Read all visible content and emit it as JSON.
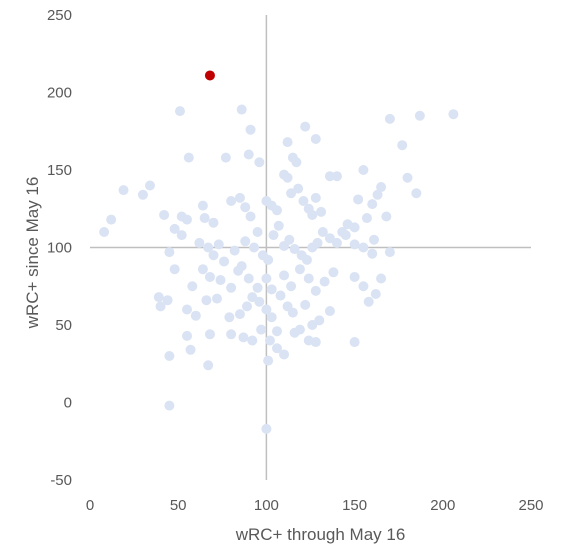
{
  "chart_data": {
    "type": "scatter",
    "title": "",
    "xlabel": "wRC+ through May 16",
    "ylabel": "wRC+ since May 16",
    "xlim": [
      0,
      250
    ],
    "ylim": [
      -50,
      250
    ],
    "x_ticks": [
      "0",
      "50",
      "100",
      "150",
      "200",
      "250"
    ],
    "y_ticks": [
      "250",
      "200",
      "150",
      "100",
      "50",
      "0",
      "-50"
    ],
    "reference_lines": {
      "x": 100,
      "y": 100
    },
    "grid": false,
    "legend": "none",
    "colors": {
      "points": "#dae3f3",
      "highlight": "#c00000",
      "axis": "#bfbfbf"
    },
    "highlight": {
      "x": 68,
      "y": 211
    },
    "points": [
      [
        51,
        188
      ],
      [
        86,
        189
      ],
      [
        91,
        176
      ],
      [
        56,
        158
      ],
      [
        77,
        158
      ],
      [
        90,
        160
      ],
      [
        96,
        155
      ],
      [
        115,
        158
      ],
      [
        117,
        155
      ],
      [
        122,
        178
      ],
      [
        128,
        170
      ],
      [
        112,
        168
      ],
      [
        170,
        183
      ],
      [
        187,
        185
      ],
      [
        206,
        186
      ],
      [
        177,
        166
      ],
      [
        19,
        137
      ],
      [
        30,
        134
      ],
      [
        34,
        140
      ],
      [
        8,
        110
      ],
      [
        12,
        118
      ],
      [
        42,
        121
      ],
      [
        52,
        120
      ],
      [
        55,
        118
      ],
      [
        64,
        127
      ],
      [
        65,
        119
      ],
      [
        70,
        116
      ],
      [
        80,
        130
      ],
      [
        85,
        132
      ],
      [
        88,
        126
      ],
      [
        91,
        120
      ],
      [
        95,
        110
      ],
      [
        100,
        130
      ],
      [
        103,
        127
      ],
      [
        106,
        124
      ],
      [
        110,
        147
      ],
      [
        112,
        145
      ],
      [
        114,
        135
      ],
      [
        118,
        138
      ],
      [
        121,
        130
      ],
      [
        124,
        125
      ],
      [
        126,
        121
      ],
      [
        128,
        132
      ],
      [
        131,
        123
      ],
      [
        136,
        146
      ],
      [
        140,
        146
      ],
      [
        143,
        110
      ],
      [
        146,
        115
      ],
      [
        150,
        113
      ],
      [
        152,
        131
      ],
      [
        155,
        150
      ],
      [
        157,
        119
      ],
      [
        160,
        128
      ],
      [
        163,
        134
      ],
      [
        165,
        139
      ],
      [
        168,
        120
      ],
      [
        180,
        145
      ],
      [
        185,
        135
      ],
      [
        161,
        105
      ],
      [
        48,
        112
      ],
      [
        52,
        108
      ],
      [
        45,
        97
      ],
      [
        62,
        103
      ],
      [
        67,
        100
      ],
      [
        70,
        95
      ],
      [
        73,
        102
      ],
      [
        76,
        91
      ],
      [
        82,
        98
      ],
      [
        86,
        88
      ],
      [
        88,
        104
      ],
      [
        93,
        100
      ],
      [
        98,
        95
      ],
      [
        101,
        92
      ],
      [
        104,
        108
      ],
      [
        107,
        114
      ],
      [
        110,
        101
      ],
      [
        113,
        105
      ],
      [
        116,
        99
      ],
      [
        120,
        95
      ],
      [
        123,
        92
      ],
      [
        126,
        100
      ],
      [
        129,
        103
      ],
      [
        132,
        110
      ],
      [
        136,
        106
      ],
      [
        140,
        103
      ],
      [
        145,
        108
      ],
      [
        150,
        102
      ],
      [
        155,
        100
      ],
      [
        160,
        96
      ],
      [
        170,
        97
      ],
      [
        48,
        86
      ],
      [
        58,
        75
      ],
      [
        64,
        86
      ],
      [
        68,
        81
      ],
      [
        74,
        79
      ],
      [
        80,
        74
      ],
      [
        84,
        85
      ],
      [
        90,
        80
      ],
      [
        95,
        74
      ],
      [
        100,
        80
      ],
      [
        103,
        73
      ],
      [
        108,
        69
      ],
      [
        110,
        82
      ],
      [
        114,
        75
      ],
      [
        119,
        86
      ],
      [
        124,
        80
      ],
      [
        128,
        72
      ],
      [
        133,
        78
      ],
      [
        138,
        84
      ],
      [
        150,
        81
      ],
      [
        155,
        75
      ],
      [
        158,
        65
      ],
      [
        162,
        70
      ],
      [
        165,
        80
      ],
      [
        39,
        68
      ],
      [
        40,
        62
      ],
      [
        44,
        66
      ],
      [
        55,
        60
      ],
      [
        60,
        56
      ],
      [
        66,
        66
      ],
      [
        72,
        67
      ],
      [
        79,
        55
      ],
      [
        85,
        57
      ],
      [
        89,
        62
      ],
      [
        92,
        68
      ],
      [
        96,
        65
      ],
      [
        100,
        60
      ],
      [
        103,
        55
      ],
      [
        106,
        46
      ],
      [
        112,
        62
      ],
      [
        115,
        58
      ],
      [
        119,
        47
      ],
      [
        122,
        63
      ],
      [
        126,
        50
      ],
      [
        130,
        53
      ],
      [
        136,
        59
      ],
      [
        150,
        39
      ],
      [
        55,
        43
      ],
      [
        57,
        34
      ],
      [
        68,
        44
      ],
      [
        80,
        44
      ],
      [
        87,
        42
      ],
      [
        92,
        40
      ],
      [
        97,
        47
      ],
      [
        102,
        40
      ],
      [
        106,
        35
      ],
      [
        110,
        31
      ],
      [
        116,
        45
      ],
      [
        124,
        40
      ],
      [
        128,
        39
      ],
      [
        45,
        30
      ],
      [
        67,
        24
      ],
      [
        101,
        27
      ],
      [
        45,
        -2
      ],
      [
        100,
        -17
      ]
    ]
  }
}
